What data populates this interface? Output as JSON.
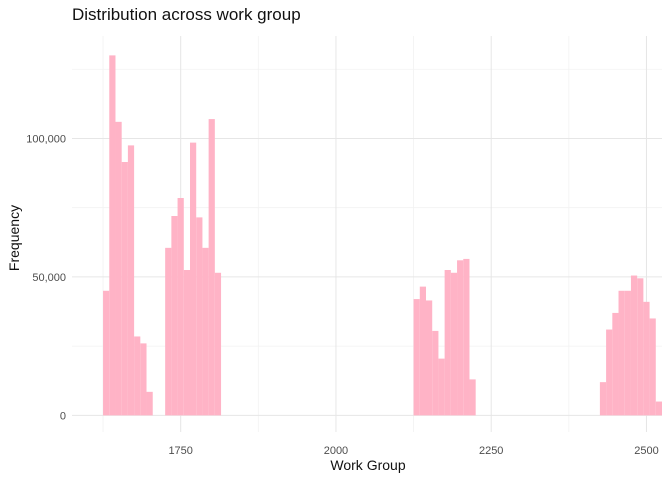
{
  "chart_data": {
    "type": "bar",
    "title": "Distribution across work group",
    "xlabel": "Work Group",
    "ylabel": "Frequency",
    "xlim": [
      1575,
      2525
    ],
    "ylim": [
      -6000,
      137000
    ],
    "x_ticks": [
      1750,
      2000,
      2250,
      2500
    ],
    "x_tick_labels": [
      "1750",
      "2000",
      "2250",
      "2500"
    ],
    "y_ticks": [
      0,
      50000,
      100000
    ],
    "y_tick_labels": [
      "0",
      "50,000",
      "100,000"
    ],
    "bin_width": 10,
    "bar_color": "#ffb3c6",
    "grid": true,
    "legend": "none",
    "bins": [
      {
        "x": 1630,
        "value": 45000
      },
      {
        "x": 1640,
        "value": 130000
      },
      {
        "x": 1650,
        "value": 106000
      },
      {
        "x": 1660,
        "value": 91500
      },
      {
        "x": 1670,
        "value": 97500
      },
      {
        "x": 1680,
        "value": 28500
      },
      {
        "x": 1690,
        "value": 26000
      },
      {
        "x": 1700,
        "value": 8500
      },
      {
        "x": 1730,
        "value": 60500
      },
      {
        "x": 1740,
        "value": 72000
      },
      {
        "x": 1750,
        "value": 78500
      },
      {
        "x": 1760,
        "value": 52500
      },
      {
        "x": 1770,
        "value": 98500
      },
      {
        "x": 1780,
        "value": 71500
      },
      {
        "x": 1790,
        "value": 60500
      },
      {
        "x": 1800,
        "value": 107000
      },
      {
        "x": 1810,
        "value": 51500
      },
      {
        "x": 2130,
        "value": 42000
      },
      {
        "x": 2140,
        "value": 46500
      },
      {
        "x": 2150,
        "value": 41500
      },
      {
        "x": 2160,
        "value": 30500
      },
      {
        "x": 2170,
        "value": 20500
      },
      {
        "x": 2180,
        "value": 52500
      },
      {
        "x": 2190,
        "value": 51500
      },
      {
        "x": 2200,
        "value": 56000
      },
      {
        "x": 2210,
        "value": 56500
      },
      {
        "x": 2220,
        "value": 13000
      },
      {
        "x": 2430,
        "value": 12000
      },
      {
        "x": 2440,
        "value": 31000
      },
      {
        "x": 2450,
        "value": 37000
      },
      {
        "x": 2460,
        "value": 45000
      },
      {
        "x": 2470,
        "value": 45000
      },
      {
        "x": 2480,
        "value": 50500
      },
      {
        "x": 2490,
        "value": 49500
      },
      {
        "x": 2500,
        "value": 41000
      },
      {
        "x": 2510,
        "value": 35000
      },
      {
        "x": 2520,
        "value": 5000
      }
    ]
  }
}
